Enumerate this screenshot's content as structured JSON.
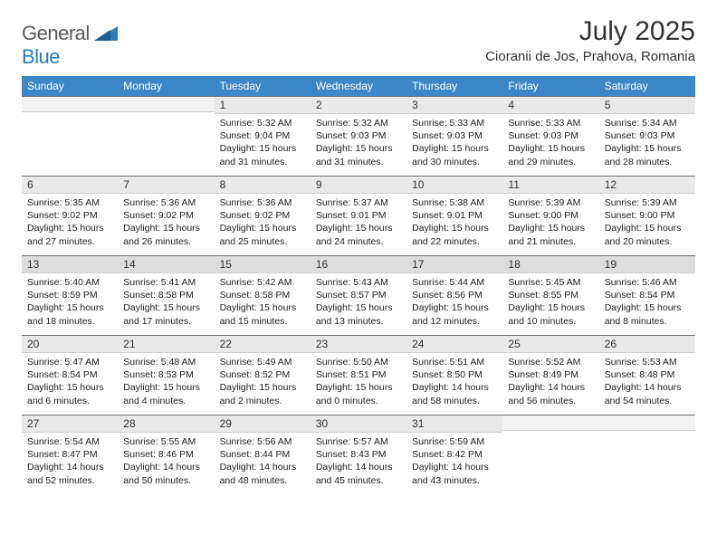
{
  "logo": {
    "text1": "General",
    "text2": "Blue",
    "accent_color": "#2b7bbf",
    "gray_color": "#5a5a5a"
  },
  "header": {
    "month_title": "July 2025",
    "location": "Cioranii de Jos, Prahova, Romania"
  },
  "colors": {
    "header_bg": "#3b87c8",
    "header_text": "#ffffff",
    "daynum_bg": "#e9e9e9",
    "daynum_border_top": "#6f6f6f",
    "body_text": "#222222",
    "page_bg": "#ffffff"
  },
  "typography": {
    "title_fontsize": 30,
    "location_fontsize": 15,
    "dayhead_fontsize": 12,
    "cell_fontsize": 10.5
  },
  "day_headers": [
    "Sunday",
    "Monday",
    "Tuesday",
    "Wednesday",
    "Thursday",
    "Friday",
    "Saturday"
  ],
  "weeks": [
    [
      null,
      null,
      {
        "n": "1",
        "sunrise": "Sunrise: 5:32 AM",
        "sunset": "Sunset: 9:04 PM",
        "day1": "Daylight: 15 hours",
        "day2": "and 31 minutes."
      },
      {
        "n": "2",
        "sunrise": "Sunrise: 5:32 AM",
        "sunset": "Sunset: 9:03 PM",
        "day1": "Daylight: 15 hours",
        "day2": "and 31 minutes."
      },
      {
        "n": "3",
        "sunrise": "Sunrise: 5:33 AM",
        "sunset": "Sunset: 9:03 PM",
        "day1": "Daylight: 15 hours",
        "day2": "and 30 minutes."
      },
      {
        "n": "4",
        "sunrise": "Sunrise: 5:33 AM",
        "sunset": "Sunset: 9:03 PM",
        "day1": "Daylight: 15 hours",
        "day2": "and 29 minutes."
      },
      {
        "n": "5",
        "sunrise": "Sunrise: 5:34 AM",
        "sunset": "Sunset: 9:03 PM",
        "day1": "Daylight: 15 hours",
        "day2": "and 28 minutes."
      }
    ],
    [
      {
        "n": "6",
        "sunrise": "Sunrise: 5:35 AM",
        "sunset": "Sunset: 9:02 PM",
        "day1": "Daylight: 15 hours",
        "day2": "and 27 minutes."
      },
      {
        "n": "7",
        "sunrise": "Sunrise: 5:36 AM",
        "sunset": "Sunset: 9:02 PM",
        "day1": "Daylight: 15 hours",
        "day2": "and 26 minutes."
      },
      {
        "n": "8",
        "sunrise": "Sunrise: 5:36 AM",
        "sunset": "Sunset: 9:02 PM",
        "day1": "Daylight: 15 hours",
        "day2": "and 25 minutes."
      },
      {
        "n": "9",
        "sunrise": "Sunrise: 5:37 AM",
        "sunset": "Sunset: 9:01 PM",
        "day1": "Daylight: 15 hours",
        "day2": "and 24 minutes."
      },
      {
        "n": "10",
        "sunrise": "Sunrise: 5:38 AM",
        "sunset": "Sunset: 9:01 PM",
        "day1": "Daylight: 15 hours",
        "day2": "and 22 minutes."
      },
      {
        "n": "11",
        "sunrise": "Sunrise: 5:39 AM",
        "sunset": "Sunset: 9:00 PM",
        "day1": "Daylight: 15 hours",
        "day2": "and 21 minutes."
      },
      {
        "n": "12",
        "sunrise": "Sunrise: 5:39 AM",
        "sunset": "Sunset: 9:00 PM",
        "day1": "Daylight: 15 hours",
        "day2": "and 20 minutes."
      }
    ],
    [
      {
        "n": "13",
        "sunrise": "Sunrise: 5:40 AM",
        "sunset": "Sunset: 8:59 PM",
        "day1": "Daylight: 15 hours",
        "day2": "and 18 minutes."
      },
      {
        "n": "14",
        "sunrise": "Sunrise: 5:41 AM",
        "sunset": "Sunset: 8:58 PM",
        "day1": "Daylight: 15 hours",
        "day2": "and 17 minutes."
      },
      {
        "n": "15",
        "sunrise": "Sunrise: 5:42 AM",
        "sunset": "Sunset: 8:58 PM",
        "day1": "Daylight: 15 hours",
        "day2": "and 15 minutes."
      },
      {
        "n": "16",
        "sunrise": "Sunrise: 5:43 AM",
        "sunset": "Sunset: 8:57 PM",
        "day1": "Daylight: 15 hours",
        "day2": "and 13 minutes."
      },
      {
        "n": "17",
        "sunrise": "Sunrise: 5:44 AM",
        "sunset": "Sunset: 8:56 PM",
        "day1": "Daylight: 15 hours",
        "day2": "and 12 minutes."
      },
      {
        "n": "18",
        "sunrise": "Sunrise: 5:45 AM",
        "sunset": "Sunset: 8:55 PM",
        "day1": "Daylight: 15 hours",
        "day2": "and 10 minutes."
      },
      {
        "n": "19",
        "sunrise": "Sunrise: 5:46 AM",
        "sunset": "Sunset: 8:54 PM",
        "day1": "Daylight: 15 hours",
        "day2": "and 8 minutes."
      }
    ],
    [
      {
        "n": "20",
        "sunrise": "Sunrise: 5:47 AM",
        "sunset": "Sunset: 8:54 PM",
        "day1": "Daylight: 15 hours",
        "day2": "and 6 minutes."
      },
      {
        "n": "21",
        "sunrise": "Sunrise: 5:48 AM",
        "sunset": "Sunset: 8:53 PM",
        "day1": "Daylight: 15 hours",
        "day2": "and 4 minutes."
      },
      {
        "n": "22",
        "sunrise": "Sunrise: 5:49 AM",
        "sunset": "Sunset: 8:52 PM",
        "day1": "Daylight: 15 hours",
        "day2": "and 2 minutes."
      },
      {
        "n": "23",
        "sunrise": "Sunrise: 5:50 AM",
        "sunset": "Sunset: 8:51 PM",
        "day1": "Daylight: 15 hours",
        "day2": "and 0 minutes."
      },
      {
        "n": "24",
        "sunrise": "Sunrise: 5:51 AM",
        "sunset": "Sunset: 8:50 PM",
        "day1": "Daylight: 14 hours",
        "day2": "and 58 minutes."
      },
      {
        "n": "25",
        "sunrise": "Sunrise: 5:52 AM",
        "sunset": "Sunset: 8:49 PM",
        "day1": "Daylight: 14 hours",
        "day2": "and 56 minutes."
      },
      {
        "n": "26",
        "sunrise": "Sunrise: 5:53 AM",
        "sunset": "Sunset: 8:48 PM",
        "day1": "Daylight: 14 hours",
        "day2": "and 54 minutes."
      }
    ],
    [
      {
        "n": "27",
        "sunrise": "Sunrise: 5:54 AM",
        "sunset": "Sunset: 8:47 PM",
        "day1": "Daylight: 14 hours",
        "day2": "and 52 minutes."
      },
      {
        "n": "28",
        "sunrise": "Sunrise: 5:55 AM",
        "sunset": "Sunset: 8:46 PM",
        "day1": "Daylight: 14 hours",
        "day2": "and 50 minutes."
      },
      {
        "n": "29",
        "sunrise": "Sunrise: 5:56 AM",
        "sunset": "Sunset: 8:44 PM",
        "day1": "Daylight: 14 hours",
        "day2": "and 48 minutes."
      },
      {
        "n": "30",
        "sunrise": "Sunrise: 5:57 AM",
        "sunset": "Sunset: 8:43 PM",
        "day1": "Daylight: 14 hours",
        "day2": "and 45 minutes."
      },
      {
        "n": "31",
        "sunrise": "Sunrise: 5:59 AM",
        "sunset": "Sunset: 8:42 PM",
        "day1": "Daylight: 14 hours",
        "day2": "and 43 minutes."
      },
      null,
      null
    ]
  ]
}
